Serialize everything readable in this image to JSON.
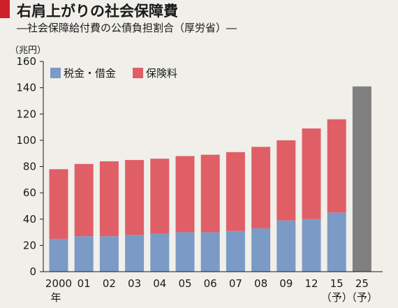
{
  "header": {
    "title": "右肩上がりの社会保障費",
    "subtitle": "―社会保障給付費の公債負担割合（厚労省）―"
  },
  "colors": {
    "tax_public": "#7b9bc6",
    "insurance": "#e05f66",
    "forecast_total": "#808080",
    "accent": "#d0202a",
    "background": "#f0efe9"
  },
  "chart_data": {
    "type": "bar",
    "stacked": true,
    "unit": "（兆円）",
    "ylim": [
      0,
      160
    ],
    "y_ticks": [
      "0",
      "20",
      "40",
      "60",
      "80",
      "100",
      "120",
      "140",
      "160"
    ],
    "categories": [
      "2000",
      "01",
      "02",
      "03",
      "04",
      "05",
      "06",
      "07",
      "08",
      "09",
      "12",
      "15",
      "25"
    ],
    "category_sublabels": [
      "年",
      "",
      "",
      "",
      "",
      "",
      "",
      "",
      "",
      "",
      "",
      "（予）",
      "（予）"
    ],
    "series": [
      {
        "name": "税金・借金",
        "values": [
          25,
          27,
          27,
          28,
          29,
          30,
          30,
          31,
          33,
          39,
          40,
          45,
          null
        ]
      },
      {
        "name": "保険料",
        "values": [
          53,
          55,
          57,
          57,
          57,
          58,
          59,
          60,
          62,
          61,
          69,
          71,
          null
        ]
      }
    ],
    "total_only": [
      null,
      null,
      null,
      null,
      null,
      null,
      null,
      null,
      null,
      null,
      null,
      null,
      141
    ],
    "legend_position": "top-left",
    "grid": false
  }
}
